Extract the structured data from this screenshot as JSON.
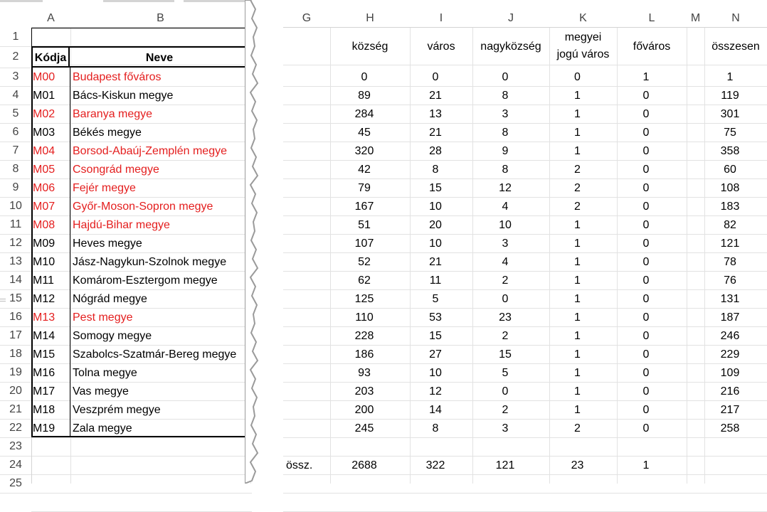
{
  "columns_left": [
    "A",
    "B"
  ],
  "columns_right": [
    "G",
    "H",
    "I",
    "J",
    "K",
    "L",
    "M",
    "N"
  ],
  "row_numbers": [
    "1",
    "2",
    "3",
    "4",
    "5",
    "6",
    "7",
    "8",
    "9",
    "10",
    "11",
    "12",
    "13",
    "14",
    "15",
    "16",
    "17",
    "18",
    "19",
    "20",
    "21",
    "22",
    "23",
    "24",
    "25"
  ],
  "left_headers": {
    "code": "Kódja",
    "name": "Neve"
  },
  "right_headers": {
    "H": "község",
    "I": "város",
    "J": "nagyközség",
    "K_line1": "megyei",
    "K_line2": "jogú város",
    "L": "főváros",
    "N": "összesen"
  },
  "rows": [
    {
      "code": "M00",
      "name": "Budapest főváros",
      "red": true,
      "H": "0",
      "I": "0",
      "J": "0",
      "K": "0",
      "L": "1",
      "N": "1"
    },
    {
      "code": "M01",
      "name": "Bács-Kiskun megye",
      "red": false,
      "H": "89",
      "I": "21",
      "J": "8",
      "K": "1",
      "L": "0",
      "N": "119"
    },
    {
      "code": "M02",
      "name": "Baranya megye",
      "red": true,
      "H": "284",
      "I": "13",
      "J": "3",
      "K": "1",
      "L": "0",
      "N": "301"
    },
    {
      "code": "M03",
      "name": "Békés megye",
      "red": false,
      "H": "45",
      "I": "21",
      "J": "8",
      "K": "1",
      "L": "0",
      "N": "75"
    },
    {
      "code": "M04",
      "name": "Borsod-Abaúj-Zemplén megye",
      "red": true,
      "H": "320",
      "I": "28",
      "J": "9",
      "K": "1",
      "L": "0",
      "N": "358"
    },
    {
      "code": "M05",
      "name": "Csongrád megye",
      "red": true,
      "H": "42",
      "I": "8",
      "J": "8",
      "K": "2",
      "L": "0",
      "N": "60"
    },
    {
      "code": "M06",
      "name": "Fejér megye",
      "red": true,
      "H": "79",
      "I": "15",
      "J": "12",
      "K": "2",
      "L": "0",
      "N": "108"
    },
    {
      "code": "M07",
      "name": "Győr-Moson-Sopron megye",
      "red": true,
      "H": "167",
      "I": "10",
      "J": "4",
      "K": "2",
      "L": "0",
      "N": "183"
    },
    {
      "code": "M08",
      "name": "Hajdú-Bihar megye",
      "red": true,
      "H": "51",
      "I": "20",
      "J": "10",
      "K": "1",
      "L": "0",
      "N": "82"
    },
    {
      "code": "M09",
      "name": "Heves megye",
      "red": false,
      "H": "107",
      "I": "10",
      "J": "3",
      "K": "1",
      "L": "0",
      "N": "121"
    },
    {
      "code": "M10",
      "name": "Jász-Nagykun-Szolnok megye",
      "red": false,
      "H": "52",
      "I": "21",
      "J": "4",
      "K": "1",
      "L": "0",
      "N": "78"
    },
    {
      "code": "M11",
      "name": "Komárom-Esztergom megye",
      "red": false,
      "H": "62",
      "I": "11",
      "J": "2",
      "K": "1",
      "L": "0",
      "N": "76"
    },
    {
      "code": "M12",
      "name": "Nógrád megye",
      "red": false,
      "H": "125",
      "I": "5",
      "J": "0",
      "K": "1",
      "L": "0",
      "N": "131"
    },
    {
      "code": "M13",
      "name": "Pest megye",
      "red": true,
      "H": "110",
      "I": "53",
      "J": "23",
      "K": "1",
      "L": "0",
      "N": "187"
    },
    {
      "code": "M14",
      "name": "Somogy megye",
      "red": false,
      "H": "228",
      "I": "15",
      "J": "2",
      "K": "1",
      "L": "0",
      "N": "246"
    },
    {
      "code": "M15",
      "name": "Szabolcs-Szatmár-Bereg megye",
      "red": false,
      "H": "186",
      "I": "27",
      "J": "15",
      "K": "1",
      "L": "0",
      "N": "229"
    },
    {
      "code": "M16",
      "name": "Tolna megye",
      "red": false,
      "H": "93",
      "I": "10",
      "J": "5",
      "K": "1",
      "L": "0",
      "N": "109"
    },
    {
      "code": "M17",
      "name": "Vas megye",
      "red": false,
      "H": "203",
      "I": "12",
      "J": "0",
      "K": "1",
      "L": "0",
      "N": "216"
    },
    {
      "code": "M18",
      "name": "Veszprém megye",
      "red": false,
      "H": "200",
      "I": "14",
      "J": "2",
      "K": "1",
      "L": "0",
      "N": "217"
    },
    {
      "code": "M19",
      "name": "Zala megye",
      "red": false,
      "H": "245",
      "I": "8",
      "J": "3",
      "K": "2",
      "L": "0",
      "N": "258"
    }
  ],
  "totals": {
    "label": "össz.",
    "H": "2688",
    "I": "322",
    "J": "121",
    "K": "23",
    "L": "1"
  },
  "colors": {
    "highlight_text": "#e41e1e",
    "header_text": "#444444",
    "gridline": "#e2e2e2"
  }
}
